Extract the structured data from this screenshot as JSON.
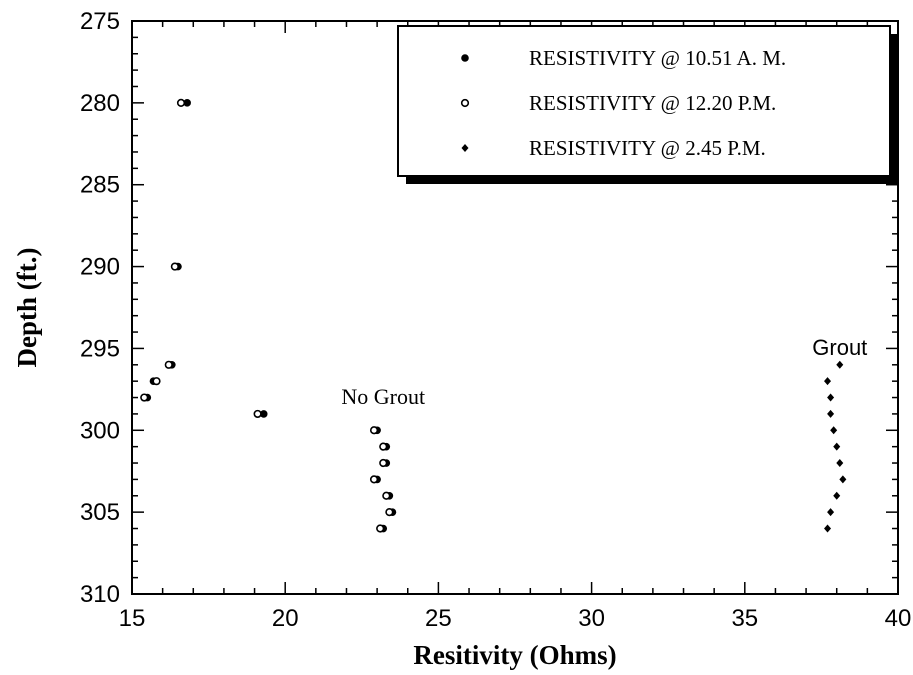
{
  "chart_data": {
    "type": "scatter",
    "title": "",
    "xlabel": "Resitivity   (Ohms)",
    "ylabel": "Depth  (ft.)",
    "xlim": [
      15,
      40
    ],
    "ylim": [
      275,
      310
    ],
    "y_inverted": true,
    "x_ticks": [
      "15",
      "20",
      "25",
      "30",
      "35",
      "40"
    ],
    "y_ticks": [
      "275",
      "280",
      "285",
      "290",
      "295",
      "300",
      "305",
      "310"
    ],
    "legend_position": "top-right",
    "series": [
      {
        "name": "RESISTIVITY @ 10.51 A. M.",
        "marker": "filled-circle",
        "points": [
          [
            16.8,
            280
          ],
          [
            16.5,
            290
          ],
          [
            16.3,
            296
          ],
          [
            15.7,
            297
          ],
          [
            15.5,
            298
          ],
          [
            19.3,
            299
          ],
          [
            23.0,
            300
          ],
          [
            23.3,
            301
          ],
          [
            23.3,
            302
          ],
          [
            23.0,
            303
          ],
          [
            23.4,
            304
          ],
          [
            23.5,
            305
          ],
          [
            23.2,
            306
          ]
        ]
      },
      {
        "name": "RESISTIVITY @ 12.20 P.M.",
        "marker": "open-circle",
        "points": [
          [
            16.6,
            280
          ],
          [
            16.4,
            290
          ],
          [
            16.2,
            296
          ],
          [
            15.8,
            297
          ],
          [
            15.4,
            298
          ],
          [
            19.1,
            299
          ],
          [
            22.9,
            300
          ],
          [
            23.2,
            301
          ],
          [
            23.2,
            302
          ],
          [
            22.9,
            303
          ],
          [
            23.3,
            304
          ],
          [
            23.4,
            305
          ],
          [
            23.1,
            306
          ]
        ]
      },
      {
        "name": "RESISTIVITY @ 2.45 P.M.",
        "marker": "diamond",
        "points": [
          [
            38.1,
            296
          ],
          [
            37.7,
            297
          ],
          [
            37.8,
            298
          ],
          [
            37.8,
            299
          ],
          [
            37.9,
            300
          ],
          [
            38.0,
            301
          ],
          [
            38.1,
            302
          ],
          [
            38.2,
            303
          ],
          [
            38.0,
            304
          ],
          [
            37.8,
            305
          ],
          [
            37.7,
            306
          ]
        ]
      }
    ],
    "annotations": [
      {
        "text": "No Grout",
        "x": 23.2,
        "y": 298.4,
        "style": "serif"
      },
      {
        "text": "Grout",
        "x": 38.1,
        "y": 295.4,
        "style": "sans"
      }
    ]
  }
}
